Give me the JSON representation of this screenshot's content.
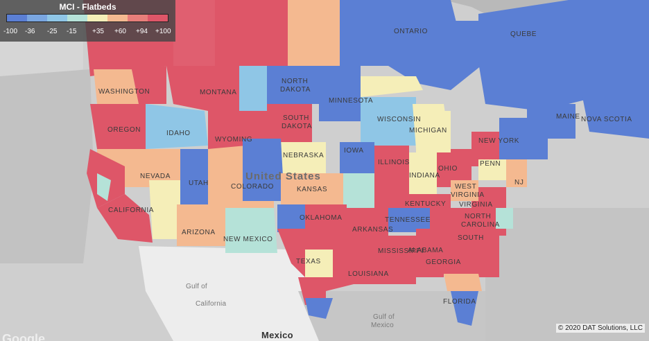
{
  "legend": {
    "title": "MCI - Flatbeds",
    "ticks": [
      "-100",
      "-36",
      "-25",
      "-15",
      "+35",
      "+60",
      "+94",
      "+100"
    ],
    "colors": [
      "#5b7fd4",
      "#7aa6e0",
      "#8fc6e6",
      "#b5e2d8",
      "#f5eeb8",
      "#f4b990",
      "#e77e7a",
      "#de5668"
    ]
  },
  "labels": {
    "ontario": "ONTARIO",
    "quebec": "QUEBE",
    "washington": "WASHINGTON",
    "montana": "MONTANA",
    "north_dakota_1": "NORTH",
    "north_dakota_2": "DAKOTA",
    "minnesota": "MINNESOTA",
    "oregon": "OREGON",
    "idaho": "IDAHO",
    "south_dakota_1": "SOUTH",
    "south_dakota_2": "DAKOTA",
    "wisconsin": "WISCONSIN",
    "michigan": "MICHIGAN",
    "wyoming": "WYOMING",
    "iowa": "IOWA",
    "nebraska": "NEBRASKA",
    "new_york": "NEW YORK",
    "maine": "MAINE",
    "nova_scotia": "NOVA SCOTIA",
    "united_states": "United States",
    "nevada": "NEVADA",
    "utah": "UTAH",
    "colorado": "COLORADO",
    "kansas": "KANSAS",
    "illinois": "ILLINOIS",
    "indiana": "INDIANA",
    "ohio": "OHIO",
    "penn": "PENN",
    "nj": "NJ",
    "west_virginia_1": "WEST",
    "west_virginia_2": "VIRGINIA",
    "virginia": "VIRGINIA",
    "kentucky": "KENTUCKY",
    "california": "CALIFORNIA",
    "arizona": "ARIZONA",
    "new_mexico": "NEW MEXICO",
    "oklahoma": "OKLAHOMA",
    "arkansas": "ARKANSAS",
    "tennessee": "TENNESSEE",
    "north_carolina_1": "NORTH",
    "north_carolina_2": "CAROLINA",
    "south_carolina": "SOUTH",
    "texas": "TEXAS",
    "louisiana": "LOUISIANA",
    "mississippi": "MISSISSIPPI",
    "alabama": "ALABAMA",
    "georgia": "GEORGIA",
    "florida": "FLORIDA",
    "gulf_california_1": "Gulf of",
    "gulf_california_2": "California",
    "gulf_mexico_1": "Gulf of",
    "gulf_mexico_2": "Mexico",
    "mexico": "Mexico"
  },
  "copyright": "© 2020 DAT Solutions, LLC",
  "google": "Google"
}
